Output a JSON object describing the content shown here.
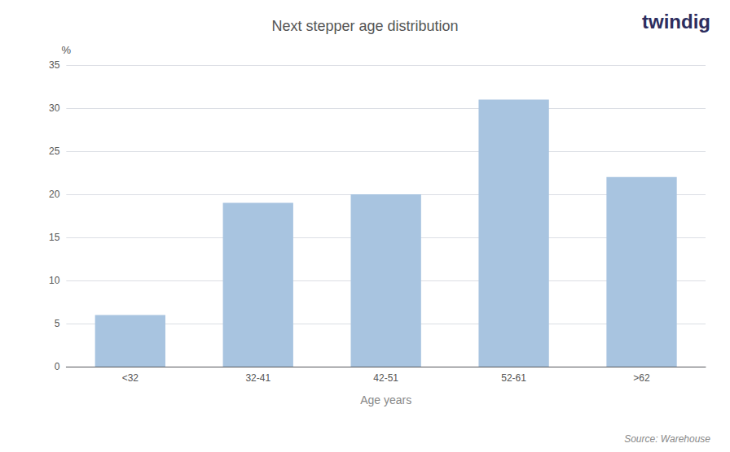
{
  "chart_data": {
    "type": "bar",
    "title": "Next stepper age distribution",
    "categories": [
      "<32",
      "32-41",
      "42-51",
      "52-61",
      ">62"
    ],
    "values": [
      6,
      19,
      20,
      31,
      22
    ],
    "color": "#a8c4e0",
    "ylabel": "%",
    "xlabel": "Age years",
    "annotations": [
      "twindig",
      "Source: Warehouse"
    ],
    "ylim": [
      0,
      35
    ],
    "yticks": [
      0,
      5,
      10,
      15,
      20,
      25,
      30,
      35
    ],
    "grid": true
  }
}
